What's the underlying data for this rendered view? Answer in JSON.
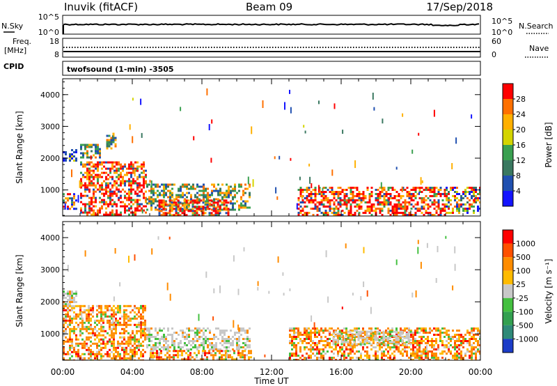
{
  "header": {
    "station": "Inuvik (fitACF)",
    "beam": "Beam 09",
    "date": "17/Sep/2018"
  },
  "panels": {
    "nsky_label": "N.Sky",
    "nsky_ticks": [
      "10^5",
      "10^0"
    ],
    "nsearch_label": "N.Search",
    "nsearch_ticks": [
      "10^5",
      "10^0"
    ],
    "freq_label_1": "Freq.",
    "freq_label_2": "[MHz]",
    "freq_ticks": [
      "18",
      "8"
    ],
    "nave_label": "Nave",
    "nave_ticks": [
      "60",
      "0"
    ],
    "cpid_label": "CPID",
    "cpid_text": "twofsound (1-min) -3505"
  },
  "chart_data": [
    {
      "type": "heatmap",
      "name": "power",
      "xlabel": "Time UT",
      "ylabel": "Slant Range [km]",
      "x_ticks": [
        "00:00",
        "04:00",
        "08:00",
        "12:00",
        "16:00",
        "20:00",
        "00:00"
      ],
      "xlim": [
        0,
        24
      ],
      "ylim": [
        180,
        4500
      ],
      "y_ticks": [
        1000,
        2000,
        3000,
        4000
      ],
      "colorbar": {
        "label": "Power [dB]",
        "range": [
          0,
          32
        ],
        "ticks": [
          "4",
          "8",
          "12",
          "16",
          "20",
          "24",
          "28"
        ],
        "colors": [
          "#1414ff",
          "#2050b0",
          "#3a7860",
          "#3aa050",
          "#d4d400",
          "#ffb000",
          "#ff7000",
          "#ff0000"
        ]
      },
      "blobs": [
        {
          "t": [
            0.0,
            0.8
          ],
          "r": [
            400,
            900
          ],
          "level": "mixed"
        },
        {
          "t": [
            0.0,
            0.8
          ],
          "r": [
            1900,
            2350
          ],
          "level": "low"
        },
        {
          "t": [
            1.0,
            2.2
          ],
          "r": [
            2050,
            2450
          ],
          "level": "mid"
        },
        {
          "t": [
            2.5,
            3.0
          ],
          "r": [
            2300,
            2800
          ],
          "level": "mid"
        },
        {
          "t": [
            1.0,
            4.8
          ],
          "r": [
            200,
            1900
          ],
          "level": "high"
        },
        {
          "t": [
            4.8,
            10.8
          ],
          "r": [
            400,
            1200
          ],
          "level": "mid"
        },
        {
          "t": [
            5.5,
            9.5
          ],
          "r": [
            200,
            700
          ],
          "level": "high"
        },
        {
          "t": [
            13.5,
            22.0
          ],
          "r": [
            200,
            1100
          ],
          "level": "high"
        },
        {
          "t": [
            22.0,
            24.0
          ],
          "r": [
            300,
            1100
          ],
          "level": "mixed"
        }
      ]
    },
    {
      "type": "heatmap",
      "name": "velocity",
      "xlabel": "Time UT",
      "ylabel": "Slant Range [km]",
      "x_ticks": [
        "00:00",
        "04:00",
        "08:00",
        "12:00",
        "16:00",
        "20:00",
        "00:00"
      ],
      "xlim": [
        0,
        24
      ],
      "ylim": [
        180,
        4500
      ],
      "y_ticks": [
        1000,
        2000,
        3000,
        4000
      ],
      "colorbar": {
        "label": "Velocity [m s⁻¹]",
        "ticks": [
          "1000",
          "500",
          "100",
          "25",
          "-25",
          "-100",
          "-500",
          "-1000"
        ],
        "colors": [
          "#1c3cc8",
          "#2f8a78",
          "#33a050",
          "#44c040",
          "#c8c8c8",
          "#ffbb00",
          "#ff8c00",
          "#ff5000",
          "#ff0000"
        ]
      },
      "blobs": [
        {
          "t": [
            0.0,
            0.8
          ],
          "r": [
            1850,
            2350
          ],
          "level": "gray"
        },
        {
          "t": [
            0.0,
            4.8
          ],
          "r": [
            200,
            1900
          ],
          "level": "orange"
        },
        {
          "t": [
            4.8,
            10.8
          ],
          "r": [
            500,
            1200
          ],
          "level": "gray"
        },
        {
          "t": [
            5.0,
            10.8
          ],
          "r": [
            200,
            500
          ],
          "level": "orange"
        },
        {
          "t": [
            13.0,
            24.0
          ],
          "r": [
            200,
            1200
          ],
          "level": "orange"
        },
        {
          "t": [
            15.5,
            20.0
          ],
          "r": [
            700,
            1100
          ],
          "level": "gray"
        }
      ]
    }
  ]
}
